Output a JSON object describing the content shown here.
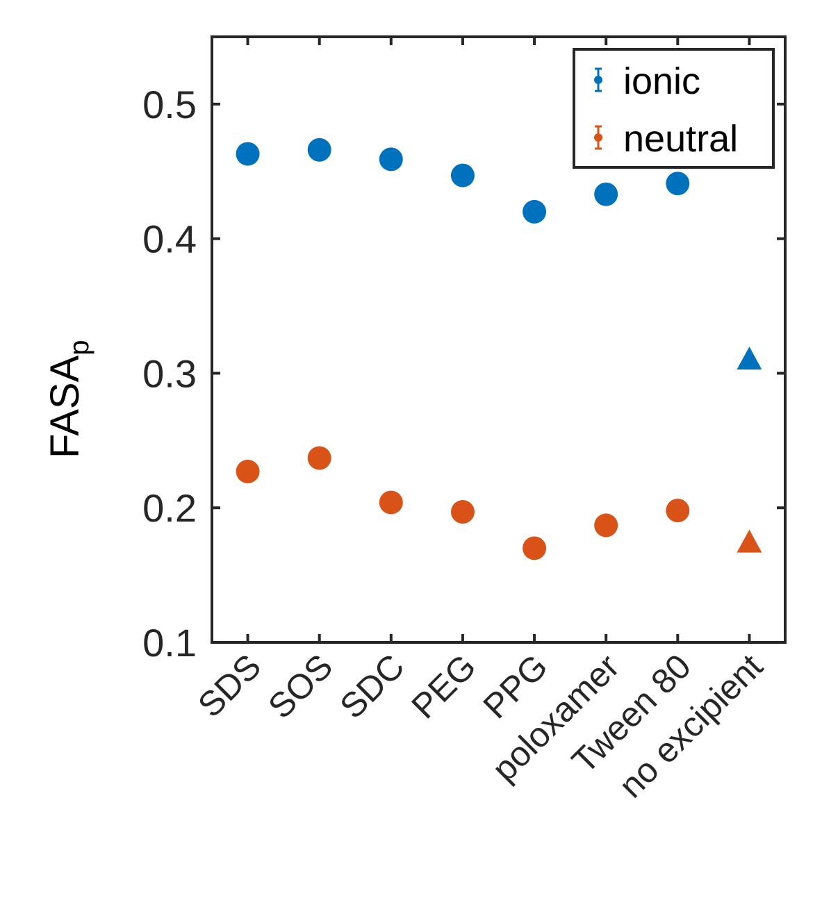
{
  "chart_data": {
    "type": "scatter",
    "title": "",
    "xlabel": "",
    "ylabel": "FASA",
    "ylabel_subscript": "p",
    "categories": [
      "SDS",
      "SOS",
      "SDC",
      "PEG",
      "PPG",
      "poloxamer",
      "Tween 80",
      "no excipient"
    ],
    "ylim": [
      0.1,
      0.55
    ],
    "xlim": [
      0.5,
      8.5
    ],
    "yticks": [
      0.1,
      0.2,
      0.3,
      0.4,
      0.5
    ],
    "ytick_labels": [
      "0.1",
      "0.2",
      "0.3",
      "0.4",
      "0.5"
    ],
    "grid": false,
    "legend_position": "top-right",
    "series": [
      {
        "name": "ionic",
        "color": "#0072BD",
        "values": [
          0.463,
          0.466,
          0.459,
          0.447,
          0.42,
          0.433,
          0.441,
          0.31
        ],
        "markers": [
          "circle",
          "circle",
          "circle",
          "circle",
          "circle",
          "circle",
          "circle",
          "triangle"
        ]
      },
      {
        "name": "neutral",
        "color": "#D95319",
        "values": [
          0.227,
          0.237,
          0.204,
          0.197,
          0.17,
          0.187,
          0.198,
          0.174
        ],
        "markers": [
          "circle",
          "circle",
          "circle",
          "circle",
          "circle",
          "circle",
          "circle",
          "triangle"
        ]
      }
    ]
  }
}
